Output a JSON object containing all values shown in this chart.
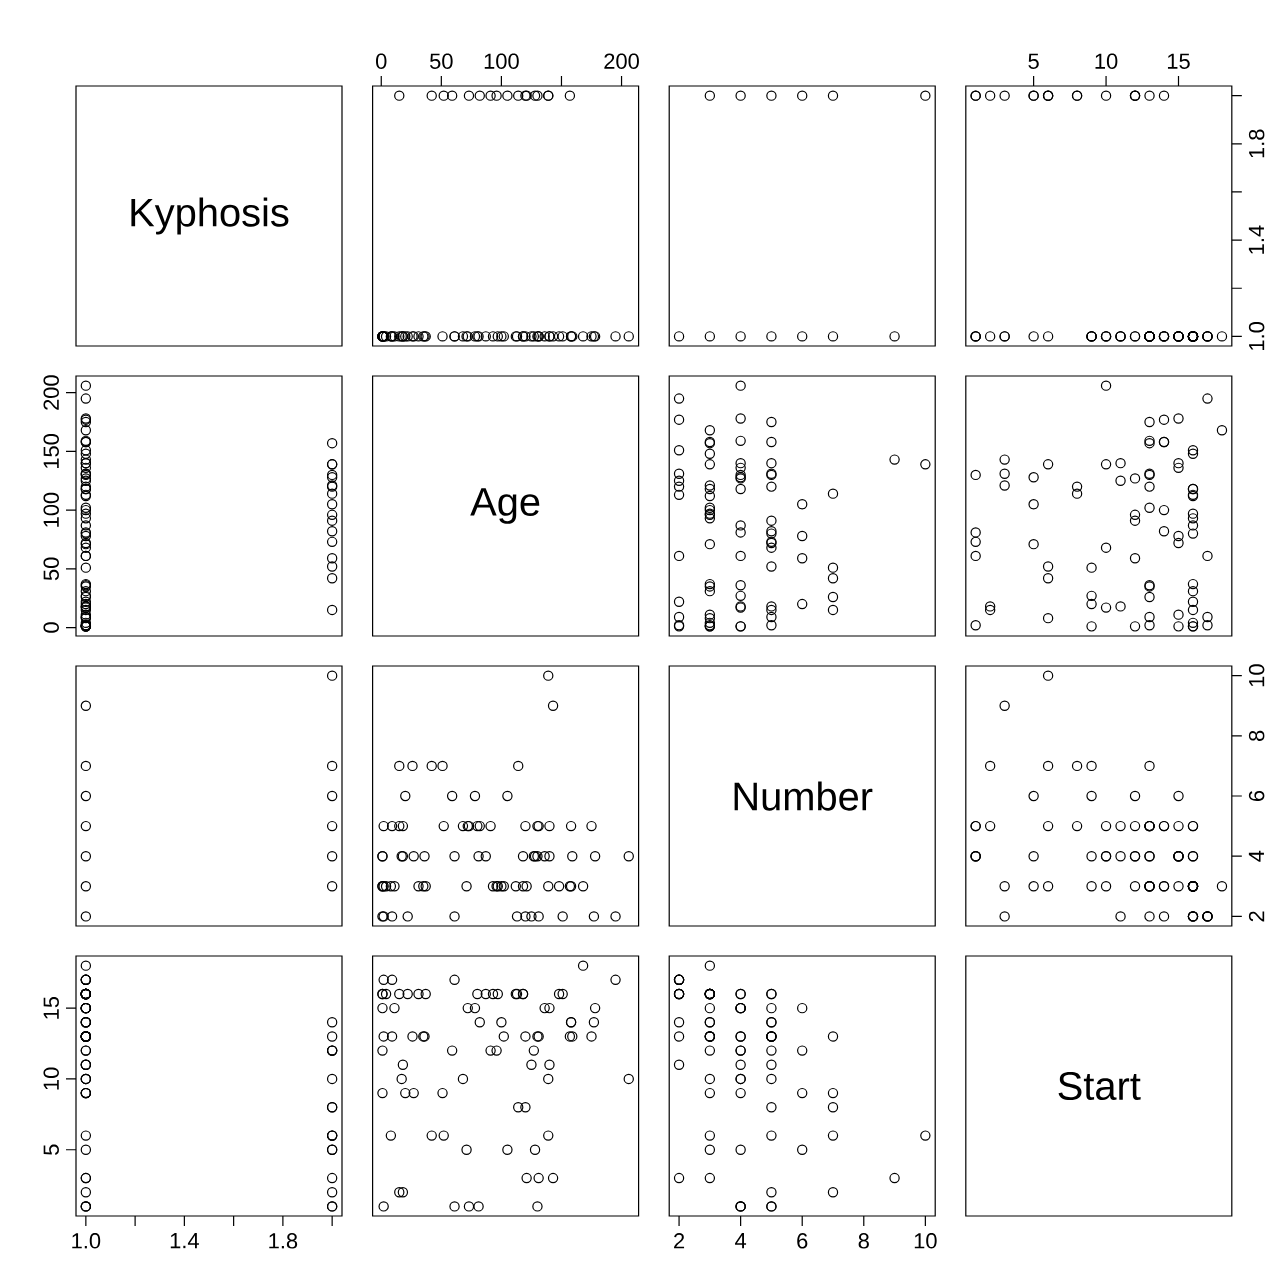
{
  "chart_data": [
    {
      "type": "other",
      "title": "Kyphosis"
    },
    {
      "type": "scatter",
      "marker": "circle",
      "color": "#000000",
      "tick_labels": "x",
      "xlim": [
        -7.2,
        214.2
      ],
      "ylim": [
        0.96,
        2.04
      ],
      "xticks": [
        0,
        50,
        100,
        {
          "value": 150,
          "label": null
        },
        200
      ],
      "x": [
        71,
        158,
        128,
        2,
        1,
        1,
        61,
        37,
        113,
        59,
        82,
        148,
        18,
        1,
        168,
        1,
        78,
        175,
        80,
        27,
        22,
        105,
        96,
        131,
        15,
        9,
        8,
        100,
        4,
        151,
        31,
        125,
        130,
        112,
        140,
        93,
        1,
        52,
        20,
        91,
        73,
        35,
        143,
        61,
        97,
        139,
        136,
        131,
        121,
        177,
        68,
        9,
        139,
        2,
        140,
        72,
        2,
        120,
        51,
        102,
        130,
        114,
        81,
        118,
        118,
        17,
        195,
        159,
        18,
        15,
        158,
        127,
        87,
        206,
        11,
        178,
        157,
        26,
        120,
        42,
        36
      ],
      "values": [
        1,
        1,
        2,
        1,
        1,
        1,
        1,
        1,
        1,
        2,
        2,
        1,
        1,
        1,
        1,
        1,
        1,
        1,
        1,
        1,
        1,
        2,
        2,
        1,
        2,
        1,
        1,
        1,
        1,
        1,
        1,
        1,
        1,
        1,
        1,
        1,
        1,
        2,
        1,
        2,
        2,
        1,
        1,
        1,
        1,
        2,
        1,
        1,
        2,
        1,
        1,
        1,
        2,
        1,
        1,
        1,
        1,
        2,
        1,
        1,
        2,
        2,
        1,
        1,
        1,
        1,
        1,
        1,
        1,
        1,
        1,
        1,
        1,
        1,
        1,
        1,
        2,
        1,
        1,
        2,
        1
      ]
    },
    {
      "type": "scatter",
      "marker": "circle",
      "color": "#000000",
      "tick_labels": false,
      "xlim": [
        1.68,
        10.32
      ],
      "ylim": [
        0.96,
        2.04
      ],
      "x": [
        2,
        3,
        4,
        5,
        6,
        7,
        9,
        3,
        4,
        5,
        6,
        7,
        10
      ],
      "values": [
        1,
        1,
        1,
        1,
        1,
        1,
        1,
        2,
        2,
        2,
        2,
        2,
        2
      ]
    },
    {
      "type": "scatter",
      "marker": "circle",
      "color": "#000000",
      "xlim": [
        0.32,
        18.68
      ],
      "ylim": [
        0.96,
        2.04
      ],
      "xticks": [
        5,
        10,
        15
      ],
      "yticks": [
        {
          "value": 1,
          "label": "1.0"
        },
        {
          "value": 1.2,
          "label": null
        },
        1.4,
        {
          "value": 1.6,
          "label": null
        },
        1.8,
        {
          "value": 2,
          "label": null
        }
      ],
      "x": [
        5,
        14,
        5,
        1,
        15,
        16,
        17,
        16,
        16,
        12,
        14,
        16,
        2,
        12,
        18,
        16,
        15,
        13,
        16,
        9,
        16,
        5,
        12,
        3,
        2,
        13,
        6,
        14,
        16,
        16,
        16,
        11,
        13,
        16,
        11,
        16,
        9,
        6,
        9,
        12,
        1,
        13,
        3,
        1,
        16,
        10,
        15,
        13,
        3,
        14,
        10,
        17,
        6,
        17,
        15,
        15,
        13,
        8,
        9,
        13,
        1,
        8,
        1,
        16,
        16,
        10,
        17,
        13,
        11,
        16,
        14,
        12,
        16,
        10,
        15,
        15,
        13,
        13,
        13,
        6,
        13
      ],
      "values": [
        1,
        1,
        2,
        1,
        1,
        1,
        1,
        1,
        1,
        2,
        2,
        1,
        1,
        1,
        1,
        1,
        1,
        1,
        1,
        1,
        1,
        2,
        2,
        1,
        2,
        1,
        1,
        1,
        1,
        1,
        1,
        1,
        1,
        1,
        1,
        1,
        1,
        2,
        1,
        2,
        2,
        1,
        1,
        1,
        1,
        2,
        1,
        1,
        2,
        1,
        1,
        1,
        2,
        1,
        1,
        1,
        1,
        2,
        1,
        1,
        2,
        2,
        1,
        1,
        1,
        1,
        1,
        1,
        1,
        1,
        1,
        1,
        1,
        1,
        1,
        1,
        2,
        1,
        1,
        2,
        1
      ]
    },
    {
      "type": "scatter",
      "marker": "circle",
      "color": "#000000",
      "tick_labels": "y",
      "xlim": [
        0.96,
        2.04
      ],
      "ylim": [
        -7.2,
        214.2
      ],
      "yticks": [
        0,
        50,
        100,
        150,
        200
      ],
      "x": [
        1,
        1,
        2,
        1,
        1,
        1,
        1,
        1,
        1,
        2,
        2,
        1,
        1,
        1,
        1,
        1,
        1,
        1,
        1,
        1,
        1,
        2,
        2,
        1,
        2,
        1,
        1,
        1,
        1,
        1,
        1,
        1,
        1,
        1,
        1,
        1,
        1,
        2,
        1,
        2,
        2,
        1,
        1,
        1,
        1,
        2,
        1,
        1,
        2,
        1,
        1,
        1,
        2,
        1,
        1,
        1,
        1,
        2,
        1,
        1,
        2,
        2,
        1,
        1,
        1,
        1,
        1,
        1,
        1,
        1,
        1,
        1,
        1,
        1,
        1,
        1,
        2,
        1,
        1,
        2,
        1
      ],
      "values": [
        71,
        158,
        128,
        2,
        1,
        1,
        61,
        37,
        113,
        59,
        82,
        148,
        18,
        1,
        168,
        1,
        78,
        175,
        80,
        27,
        22,
        105,
        96,
        131,
        15,
        9,
        8,
        100,
        4,
        151,
        31,
        125,
        130,
        112,
        140,
        93,
        1,
        52,
        20,
        91,
        73,
        35,
        143,
        61,
        97,
        139,
        136,
        131,
        121,
        177,
        68,
        9,
        139,
        2,
        140,
        72,
        2,
        120,
        51,
        102,
        130,
        114,
        81,
        118,
        118,
        17,
        195,
        159,
        18,
        15,
        158,
        127,
        87,
        206,
        11,
        178,
        157,
        26,
        120,
        42,
        36
      ]
    },
    {
      "type": "other",
      "title": "Age"
    },
    {
      "type": "scatter",
      "marker": "circle",
      "color": "#000000",
      "tick_labels": false,
      "xlim": [
        1.68,
        10.32
      ],
      "ylim": [
        -7.2,
        214.2
      ],
      "x": [
        3,
        3,
        4,
        5,
        4,
        2,
        2,
        3,
        2,
        6,
        5,
        3,
        5,
        4,
        3,
        3,
        6,
        5,
        5,
        4,
        2,
        6,
        3,
        2,
        7,
        5,
        3,
        3,
        3,
        2,
        3,
        2,
        5,
        3,
        5,
        3,
        3,
        5,
        6,
        5,
        5,
        3,
        9,
        4,
        3,
        3,
        4,
        5,
        3,
        2,
        5,
        2,
        10,
        2,
        4,
        5,
        3,
        5,
        7,
        3,
        4,
        7,
        4,
        3,
        4,
        4,
        2,
        4,
        4,
        5,
        5,
        4,
        4,
        4,
        3,
        4,
        3,
        7,
        2,
        7,
        4
      ],
      "values": [
        71,
        158,
        128,
        2,
        1,
        1,
        61,
        37,
        113,
        59,
        82,
        148,
        18,
        1,
        168,
        1,
        78,
        175,
        80,
        27,
        22,
        105,
        96,
        131,
        15,
        9,
        8,
        100,
        4,
        151,
        31,
        125,
        130,
        112,
        140,
        93,
        1,
        52,
        20,
        91,
        73,
        35,
        143,
        61,
        97,
        139,
        136,
        131,
        121,
        177,
        68,
        9,
        139,
        2,
        140,
        72,
        2,
        120,
        51,
        102,
        130,
        114,
        81,
        118,
        118,
        17,
        195,
        159,
        18,
        15,
        158,
        127,
        87,
        206,
        11,
        178,
        157,
        26,
        120,
        42,
        36
      ]
    },
    {
      "type": "scatter",
      "marker": "circle",
      "color": "#000000",
      "tick_labels": false,
      "xlim": [
        0.32,
        18.68
      ],
      "ylim": [
        -7.2,
        214.2
      ],
      "x": [
        5,
        14,
        5,
        1,
        15,
        16,
        17,
        16,
        16,
        12,
        14,
        16,
        2,
        12,
        18,
        16,
        15,
        13,
        16,
        9,
        16,
        5,
        12,
        3,
        2,
        13,
        6,
        14,
        16,
        16,
        16,
        11,
        13,
        16,
        11,
        16,
        9,
        6,
        9,
        12,
        1,
        13,
        3,
        1,
        16,
        10,
        15,
        13,
        3,
        14,
        10,
        17,
        6,
        17,
        15,
        15,
        13,
        8,
        9,
        13,
        1,
        8,
        1,
        16,
        16,
        10,
        17,
        13,
        11,
        16,
        14,
        12,
        16,
        10,
        15,
        15,
        13,
        13,
        13,
        6,
        13
      ],
      "values": [
        71,
        158,
        128,
        2,
        1,
        1,
        61,
        37,
        113,
        59,
        82,
        148,
        18,
        1,
        168,
        1,
        78,
        175,
        80,
        27,
        22,
        105,
        96,
        131,
        15,
        9,
        8,
        100,
        4,
        151,
        31,
        125,
        130,
        112,
        140,
        93,
        1,
        52,
        20,
        91,
        73,
        35,
        143,
        61,
        97,
        139,
        136,
        131,
        121,
        177,
        68,
        9,
        139,
        2,
        140,
        72,
        2,
        120,
        51,
        102,
        130,
        114,
        81,
        118,
        118,
        17,
        195,
        159,
        18,
        15,
        158,
        127,
        87,
        206,
        11,
        178,
        157,
        26,
        120,
        42,
        36
      ]
    },
    {
      "type": "scatter",
      "marker": "circle",
      "color": "#000000",
      "tick_labels": false,
      "xlim": [
        0.96,
        2.04
      ],
      "ylim": [
        1.68,
        10.32
      ],
      "x": [
        1,
        1,
        1,
        1,
        1,
        1,
        1,
        2,
        2,
        2,
        2,
        2,
        2
      ],
      "values": [
        2,
        3,
        4,
        5,
        6,
        7,
        9,
        3,
        4,
        5,
        6,
        7,
        10
      ]
    },
    {
      "type": "scatter",
      "marker": "circle",
      "color": "#000000",
      "tick_labels": false,
      "xlim": [
        -7.2,
        214.2
      ],
      "ylim": [
        1.68,
        10.32
      ],
      "x": [
        71,
        158,
        128,
        2,
        1,
        1,
        61,
        37,
        113,
        59,
        82,
        148,
        18,
        1,
        168,
        1,
        78,
        175,
        80,
        27,
        22,
        105,
        96,
        131,
        15,
        9,
        8,
        100,
        4,
        151,
        31,
        125,
        130,
        112,
        140,
        93,
        1,
        52,
        20,
        91,
        73,
        35,
        143,
        61,
        97,
        139,
        136,
        131,
        121,
        177,
        68,
        9,
        139,
        2,
        140,
        72,
        2,
        120,
        51,
        102,
        130,
        114,
        81,
        118,
        118,
        17,
        195,
        159,
        18,
        15,
        158,
        127,
        87,
        206,
        11,
        178,
        157,
        26,
        120,
        42,
        36
      ],
      "values": [
        3,
        3,
        4,
        5,
        4,
        2,
        2,
        3,
        2,
        6,
        5,
        3,
        5,
        4,
        3,
        3,
        6,
        5,
        5,
        4,
        2,
        6,
        3,
        2,
        7,
        5,
        3,
        3,
        3,
        2,
        3,
        2,
        5,
        3,
        5,
        3,
        3,
        5,
        6,
        5,
        5,
        3,
        9,
        4,
        3,
        3,
        4,
        5,
        3,
        2,
        5,
        2,
        10,
        2,
        4,
        5,
        3,
        5,
        7,
        3,
        4,
        7,
        4,
        3,
        4,
        4,
        2,
        4,
        4,
        5,
        5,
        4,
        4,
        4,
        3,
        4,
        3,
        7,
        2,
        7,
        4
      ]
    },
    {
      "type": "other",
      "title": "Number"
    },
    {
      "type": "scatter",
      "marker": "circle",
      "color": "#000000",
      "tick_labels": "y",
      "xlim": [
        0.32,
        18.68
      ],
      "ylim": [
        1.68,
        10.32
      ],
      "yticks": [
        2,
        4,
        6,
        8,
        10
      ],
      "x": [
        5,
        14,
        5,
        1,
        15,
        16,
        17,
        16,
        16,
        12,
        14,
        16,
        2,
        12,
        18,
        16,
        15,
        13,
        16,
        9,
        16,
        5,
        12,
        3,
        2,
        13,
        6,
        14,
        16,
        16,
        16,
        11,
        13,
        16,
        11,
        16,
        9,
        6,
        9,
        12,
        1,
        13,
        3,
        1,
        16,
        10,
        15,
        13,
        3,
        14,
        10,
        17,
        6,
        17,
        15,
        15,
        13,
        8,
        9,
        13,
        1,
        8,
        1,
        16,
        16,
        10,
        17,
        13,
        11,
        16,
        14,
        12,
        16,
        10,
        15,
        15,
        13,
        13,
        13,
        6,
        13
      ],
      "values": [
        3,
        3,
        4,
        5,
        4,
        2,
        2,
        3,
        2,
        6,
        5,
        3,
        5,
        4,
        3,
        3,
        6,
        5,
        5,
        4,
        2,
        6,
        3,
        2,
        7,
        5,
        3,
        3,
        3,
        2,
        3,
        2,
        5,
        3,
        5,
        3,
        3,
        5,
        6,
        5,
        5,
        3,
        9,
        4,
        3,
        3,
        4,
        5,
        3,
        2,
        5,
        2,
        10,
        2,
        4,
        5,
        3,
        5,
        7,
        3,
        4,
        7,
        4,
        3,
        4,
        4,
        2,
        4,
        4,
        5,
        5,
        4,
        4,
        4,
        3,
        4,
        3,
        7,
        2,
        7,
        4
      ]
    },
    {
      "type": "scatter",
      "marker": "circle",
      "color": "#000000",
      "xlim": [
        0.96,
        2.04
      ],
      "ylim": [
        0.32,
        18.68
      ],
      "xticks": [
        {
          "value": 1,
          "label": "1.0"
        },
        {
          "value": 1.2,
          "label": null
        },
        1.4,
        {
          "value": 1.6,
          "label": null
        },
        1.8,
        {
          "value": 2,
          "label": null
        }
      ],
      "yticks": [
        5,
        10,
        15
      ],
      "x": [
        1,
        1,
        2,
        1,
        1,
        1,
        1,
        1,
        1,
        2,
        2,
        1,
        1,
        1,
        1,
        1,
        1,
        1,
        1,
        1,
        1,
        2,
        2,
        1,
        2,
        1,
        1,
        1,
        1,
        1,
        1,
        1,
        1,
        1,
        1,
        1,
        1,
        2,
        1,
        2,
        2,
        1,
        1,
        1,
        1,
        2,
        1,
        1,
        2,
        1,
        1,
        1,
        2,
        1,
        1,
        1,
        1,
        2,
        1,
        1,
        2,
        2,
        1,
        1,
        1,
        1,
        1,
        1,
        1,
        1,
        1,
        1,
        1,
        1,
        1,
        1,
        2,
        1,
        1,
        2,
        1
      ],
      "values": [
        5,
        14,
        5,
        1,
        15,
        16,
        17,
        16,
        16,
        12,
        14,
        16,
        2,
        12,
        18,
        16,
        15,
        13,
        16,
        9,
        16,
        5,
        12,
        3,
        2,
        13,
        6,
        14,
        16,
        16,
        16,
        11,
        13,
        16,
        11,
        16,
        9,
        6,
        9,
        12,
        1,
        13,
        3,
        1,
        16,
        10,
        15,
        13,
        3,
        14,
        10,
        17,
        6,
        17,
        15,
        15,
        13,
        8,
        9,
        13,
        1,
        8,
        1,
        16,
        16,
        10,
        17,
        13,
        11,
        16,
        14,
        12,
        16,
        10,
        15,
        15,
        13,
        13,
        13,
        6,
        13
      ]
    },
    {
      "type": "scatter",
      "marker": "circle",
      "color": "#000000",
      "tick_labels": false,
      "xlim": [
        -7.2,
        214.2
      ],
      "ylim": [
        0.32,
        18.68
      ],
      "x": [
        71,
        158,
        128,
        2,
        1,
        1,
        61,
        37,
        113,
        59,
        82,
        148,
        18,
        1,
        168,
        1,
        78,
        175,
        80,
        27,
        22,
        105,
        96,
        131,
        15,
        9,
        8,
        100,
        4,
        151,
        31,
        125,
        130,
        112,
        140,
        93,
        1,
        52,
        20,
        91,
        73,
        35,
        143,
        61,
        97,
        139,
        136,
        131,
        121,
        177,
        68,
        9,
        139,
        2,
        140,
        72,
        2,
        120,
        51,
        102,
        130,
        114,
        81,
        118,
        118,
        17,
        195,
        159,
        18,
        15,
        158,
        127,
        87,
        206,
        11,
        178,
        157,
        26,
        120,
        42,
        36
      ],
      "values": [
        5,
        14,
        5,
        1,
        15,
        16,
        17,
        16,
        16,
        12,
        14,
        16,
        2,
        12,
        18,
        16,
        15,
        13,
        16,
        9,
        16,
        5,
        12,
        3,
        2,
        13,
        6,
        14,
        16,
        16,
        16,
        11,
        13,
        16,
        11,
        16,
        9,
        6,
        9,
        12,
        1,
        13,
        3,
        1,
        16,
        10,
        15,
        13,
        3,
        14,
        10,
        17,
        6,
        17,
        15,
        15,
        13,
        8,
        9,
        13,
        1,
        8,
        1,
        16,
        16,
        10,
        17,
        13,
        11,
        16,
        14,
        12,
        16,
        10,
        15,
        15,
        13,
        13,
        13,
        6,
        13
      ]
    },
    {
      "type": "scatter",
      "marker": "circle",
      "color": "#000000",
      "tick_labels": "x",
      "xlim": [
        1.68,
        10.32
      ],
      "ylim": [
        0.32,
        18.68
      ],
      "xticks": [
        2,
        4,
        6,
        8,
        10
      ],
      "x": [
        3,
        3,
        4,
        5,
        4,
        2,
        2,
        3,
        2,
        6,
        5,
        3,
        5,
        4,
        3,
        3,
        6,
        5,
        5,
        4,
        2,
        6,
        3,
        2,
        7,
        5,
        3,
        3,
        3,
        2,
        3,
        2,
        5,
        3,
        5,
        3,
        3,
        5,
        6,
        5,
        5,
        3,
        9,
        4,
        3,
        3,
        4,
        5,
        3,
        2,
        5,
        2,
        10,
        2,
        4,
        5,
        3,
        5,
        7,
        3,
        4,
        7,
        4,
        3,
        4,
        4,
        2,
        4,
        4,
        5,
        5,
        4,
        4,
        4,
        3,
        4,
        3,
        7,
        2,
        7,
        4
      ],
      "values": [
        5,
        14,
        5,
        1,
        15,
        16,
        17,
        16,
        16,
        12,
        14,
        16,
        2,
        12,
        18,
        16,
        15,
        13,
        16,
        9,
        16,
        5,
        12,
        3,
        2,
        13,
        6,
        14,
        16,
        16,
        16,
        11,
        13,
        16,
        11,
        16,
        9,
        6,
        9,
        12,
        1,
        13,
        3,
        1,
        16,
        10,
        15,
        13,
        3,
        14,
        10,
        17,
        6,
        17,
        15,
        15,
        13,
        8,
        9,
        13,
        1,
        8,
        1,
        16,
        16,
        10,
        17,
        13,
        11,
        16,
        14,
        12,
        16,
        10,
        15,
        15,
        13,
        13,
        13,
        6,
        13
      ]
    },
    {
      "type": "other",
      "title": "Start"
    }
  ]
}
